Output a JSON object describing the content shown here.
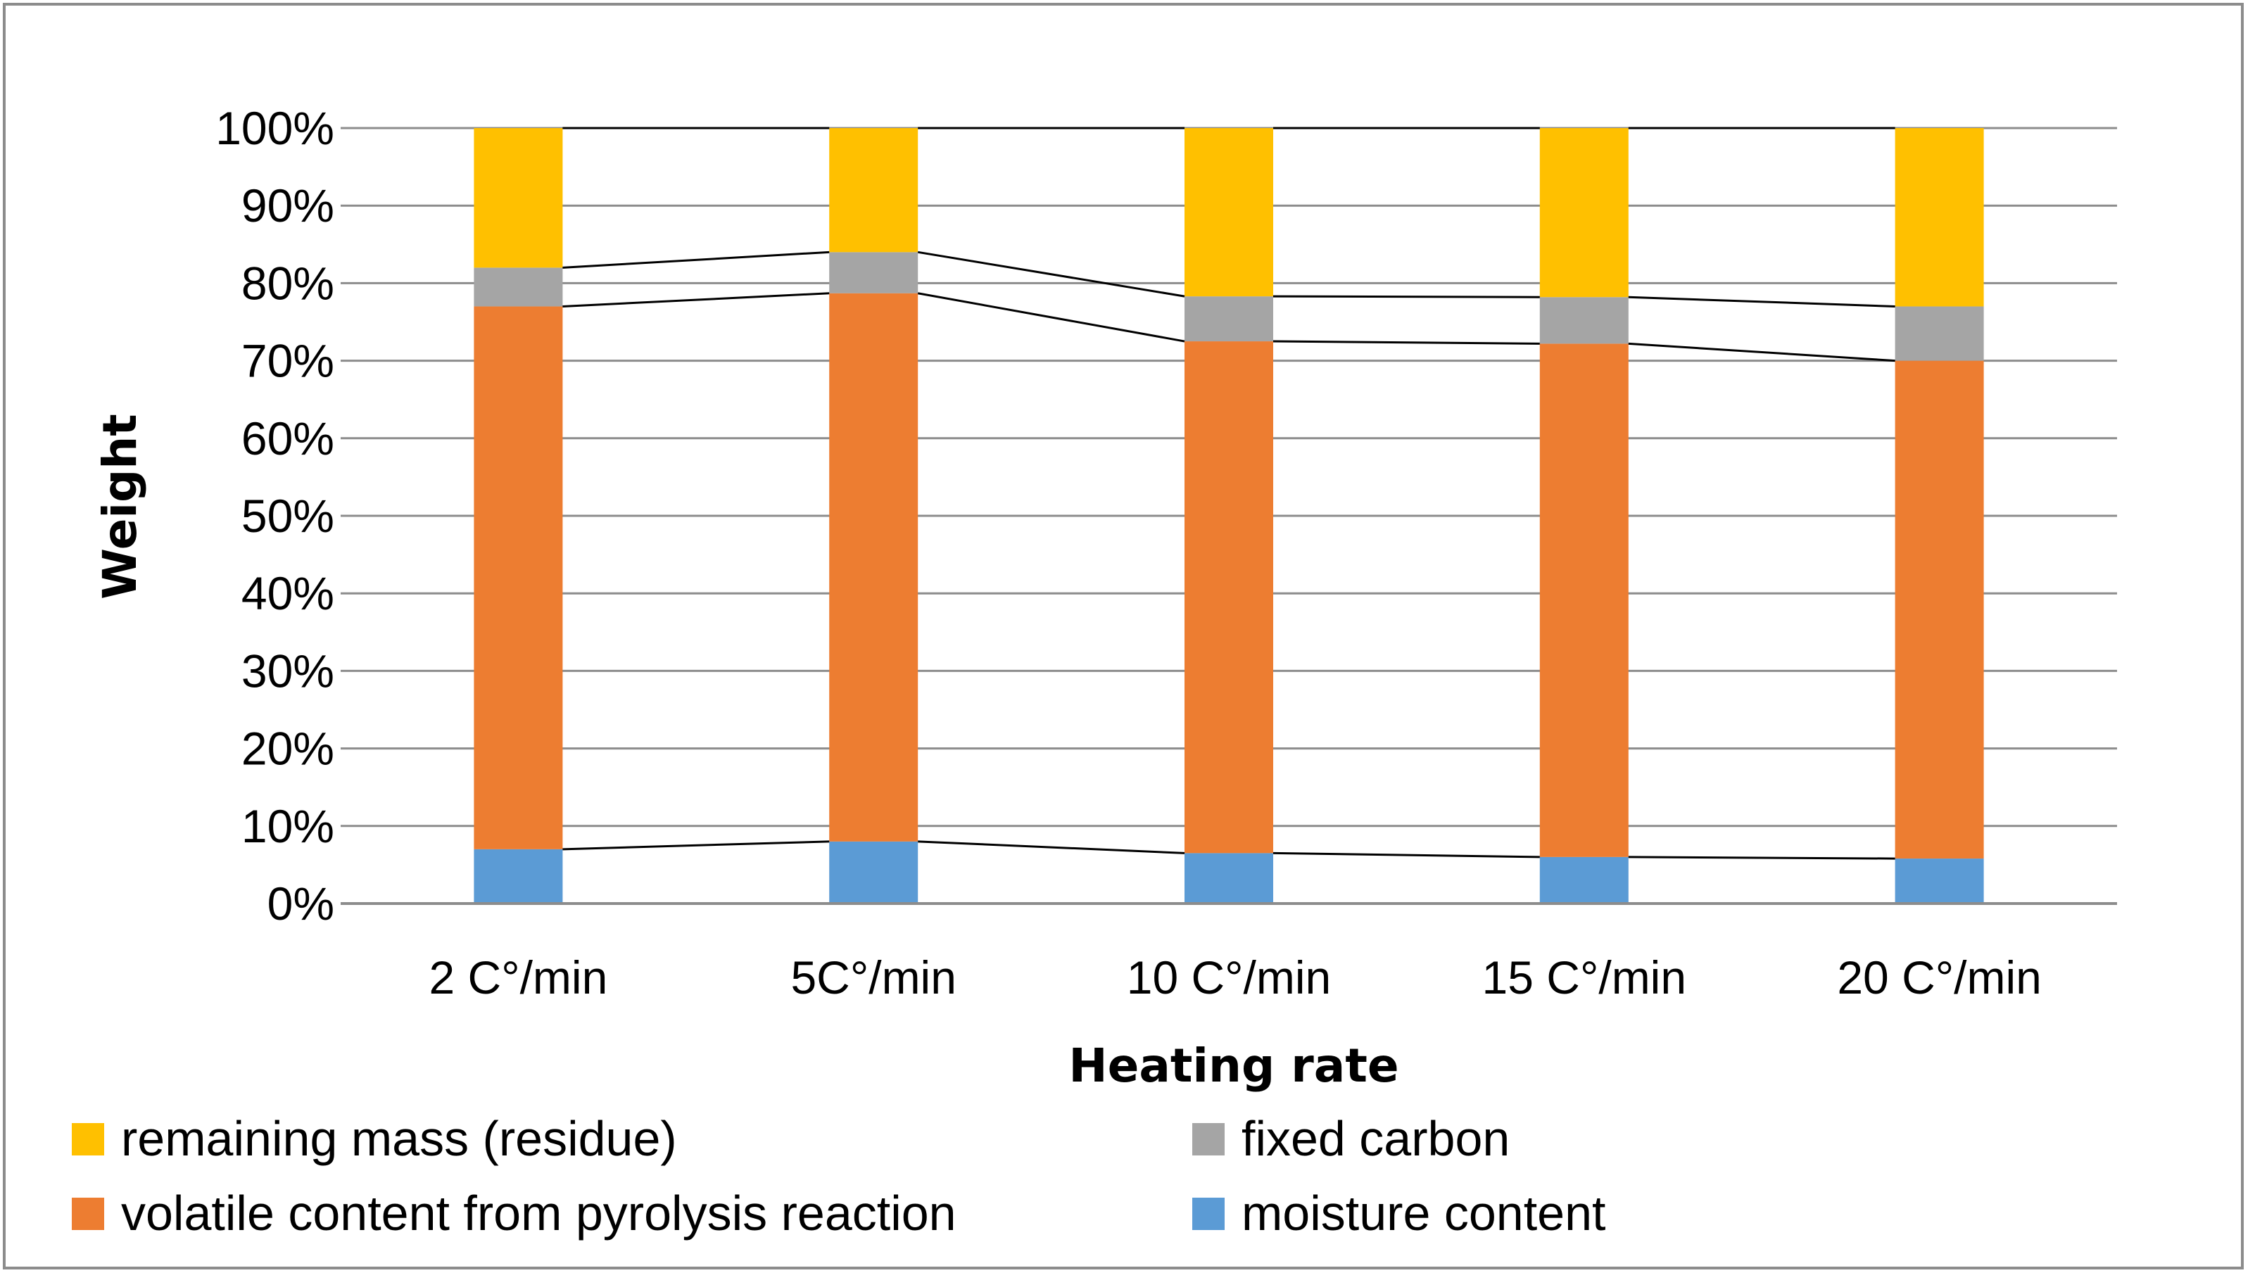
{
  "chart_data": {
    "type": "bar",
    "stacked": true,
    "title": "",
    "xlabel": "Heating rate",
    "ylabel": "Weight",
    "ylim": [
      0,
      100
    ],
    "yticks": [
      "0%",
      "10%",
      "20%",
      "30%",
      "40%",
      "50%",
      "60%",
      "70%",
      "80%",
      "90%",
      "100%"
    ],
    "categories": [
      "2 C°/min",
      "5C°/min",
      "10 C°/min",
      "15 C°/min",
      "20 C°/min"
    ],
    "series": [
      {
        "name": "moisture content",
        "color": "#5b9bd5",
        "values": [
          7,
          8,
          6.5,
          6,
          5.8
        ]
      },
      {
        "name": "volatile content from pyrolysis reaction",
        "color": "#ed7d31",
        "values": [
          70,
          70.7,
          66,
          66.2,
          64.2
        ]
      },
      {
        "name": "fixed carbon",
        "color": "#a5a5a5",
        "values": [
          5,
          5.3,
          5.8,
          6,
          7
        ]
      },
      {
        "name": "remaining mass (residue)",
        "color": "#ffc000",
        "values": [
          18,
          16,
          21.7,
          21.8,
          23
        ]
      }
    ],
    "legend": {
      "position": "bottom",
      "entries": [
        "remaining mass (residue)",
        "fixed carbon",
        "volatile content from pyrolysis reaction",
        "moisture content"
      ]
    },
    "grid": true,
    "series_lines": true
  }
}
